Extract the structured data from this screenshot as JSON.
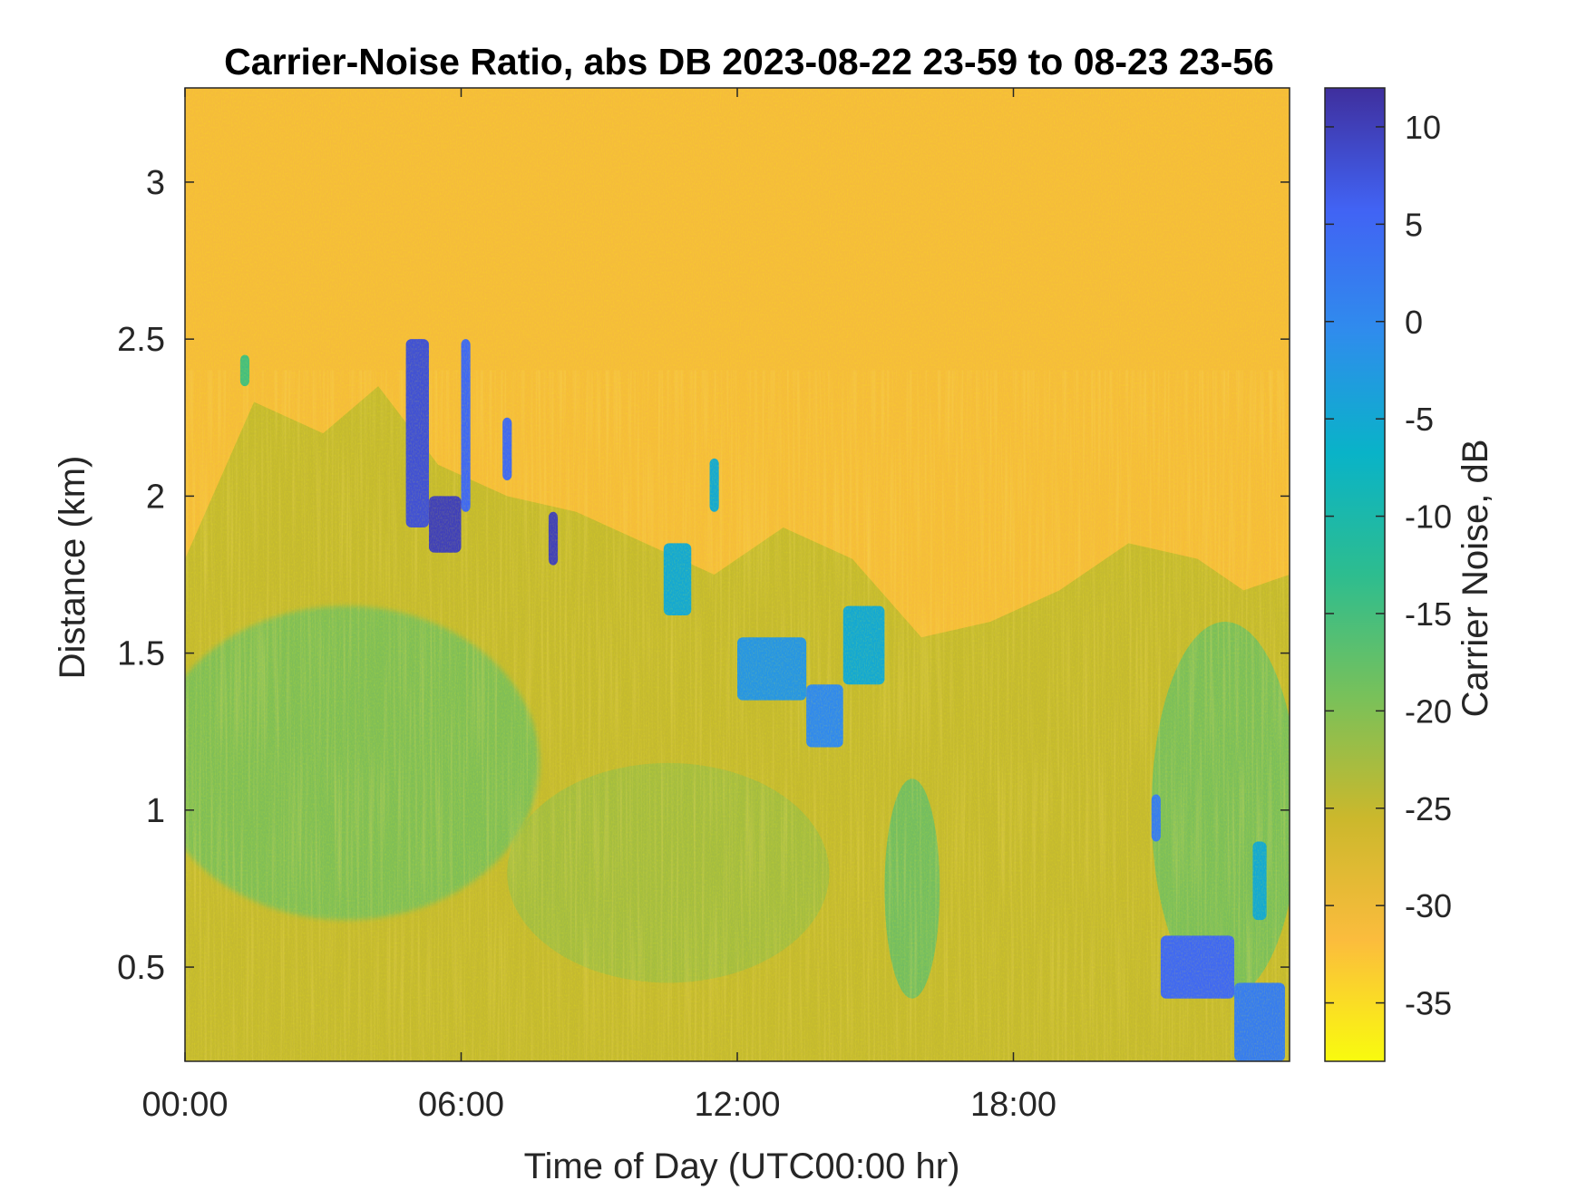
{
  "chart_data": {
    "type": "heatmap",
    "title": "Carrier-Noise Ratio, abs DB 2023-08-22 23-59 to 08-23 23-56",
    "xlabel": "Time of Day (UTC00:00 hr)",
    "ylabel": "Distance (km)",
    "xlim": [
      0,
      24
    ],
    "ylim": [
      0.2,
      3.3
    ],
    "x_ticks": [
      {
        "value": 0,
        "label": "00:00"
      },
      {
        "value": 6,
        "label": "06:00"
      },
      {
        "value": 12,
        "label": "12:00"
      },
      {
        "value": 18,
        "label": "18:00"
      }
    ],
    "y_ticks": [
      {
        "value": 0.5,
        "label": "0.5"
      },
      {
        "value": 1,
        "label": "1"
      },
      {
        "value": 1.5,
        "label": "1.5"
      },
      {
        "value": 2,
        "label": "2"
      },
      {
        "value": 2.5,
        "label": "2.5"
      },
      {
        "value": 3,
        "label": "3"
      }
    ],
    "colorbar": {
      "label": "Carrier Noise, dB",
      "range": [
        -38,
        12
      ],
      "ticks": [
        {
          "value": 10,
          "label": "10"
        },
        {
          "value": 5,
          "label": "5"
        },
        {
          "value": 0,
          "label": "0"
        },
        {
          "value": -5,
          "label": "-5"
        },
        {
          "value": -10,
          "label": "-10"
        },
        {
          "value": -15,
          "label": "-15"
        },
        {
          "value": -20,
          "label": "-20"
        },
        {
          "value": -25,
          "label": "-25"
        },
        {
          "value": -30,
          "label": "-30"
        },
        {
          "value": -35,
          "label": "-35"
        }
      ],
      "colormap": "parula (reversed)",
      "colors": [
        "#f9fb0e",
        "#fbbc3d",
        "#cbb82c",
        "#78c15a",
        "#2dbd8f",
        "#09b3c8",
        "#2f8ced",
        "#4163f4",
        "#3f2f9d"
      ]
    },
    "background_level_db": -31,
    "boundary_layer_top_km": [
      {
        "x": 0,
        "y": 1.8
      },
      {
        "x": 1.5,
        "y": 2.3
      },
      {
        "x": 3,
        "y": 2.2
      },
      {
        "x": 4.2,
        "y": 2.35
      },
      {
        "x": 5.5,
        "y": 2.1
      },
      {
        "x": 7,
        "y": 2.0
      },
      {
        "x": 8.5,
        "y": 1.95
      },
      {
        "x": 10,
        "y": 1.85
      },
      {
        "x": 11.5,
        "y": 1.75
      },
      {
        "x": 13,
        "y": 1.9
      },
      {
        "x": 14.5,
        "y": 1.8
      },
      {
        "x": 16,
        "y": 1.55
      },
      {
        "x": 17.5,
        "y": 1.6
      },
      {
        "x": 19,
        "y": 1.7
      },
      {
        "x": 20.5,
        "y": 1.85
      },
      {
        "x": 22,
        "y": 1.8
      },
      {
        "x": 23,
        "y": 1.7
      },
      {
        "x": 24,
        "y": 1.75
      }
    ],
    "cloud_features": [
      {
        "x": [
          1.2,
          1.4
        ],
        "y": [
          2.35,
          2.45
        ],
        "db": -15
      },
      {
        "x": [
          4.8,
          5.3
        ],
        "y": [
          1.9,
          2.5
        ],
        "db": 8
      },
      {
        "x": [
          5.3,
          6.0
        ],
        "y": [
          1.82,
          2.0
        ],
        "db": 10
      },
      {
        "x": [
          6.0,
          6.2
        ],
        "y": [
          1.95,
          2.5
        ],
        "db": 5
      },
      {
        "x": [
          6.9,
          7.1
        ],
        "y": [
          2.05,
          2.25
        ],
        "db": 5
      },
      {
        "x": [
          7.9,
          8.1
        ],
        "y": [
          1.78,
          1.95
        ],
        "db": 10
      },
      {
        "x": [
          10.4,
          11.0
        ],
        "y": [
          1.62,
          1.85
        ],
        "db": -5
      },
      {
        "x": [
          11.4,
          11.6
        ],
        "y": [
          1.95,
          2.12
        ],
        "db": -5
      },
      {
        "x": [
          12.0,
          13.5
        ],
        "y": [
          1.35,
          1.55
        ],
        "db": -2
      },
      {
        "x": [
          13.5,
          14.3
        ],
        "y": [
          1.2,
          1.4
        ],
        "db": 0
      },
      {
        "x": [
          14.3,
          15.2
        ],
        "y": [
          1.4,
          1.65
        ],
        "db": -5
      },
      {
        "x": [
          21.0,
          21.2
        ],
        "y": [
          0.9,
          1.05
        ],
        "db": 2
      },
      {
        "x": [
          21.2,
          22.8
        ],
        "y": [
          0.4,
          0.6
        ],
        "db": 5
      },
      {
        "x": [
          22.8,
          23.9
        ],
        "y": [
          0.2,
          0.45
        ],
        "db": 2
      },
      {
        "x": [
          23.2,
          23.5
        ],
        "y": [
          0.65,
          0.9
        ],
        "db": -5
      }
    ]
  }
}
